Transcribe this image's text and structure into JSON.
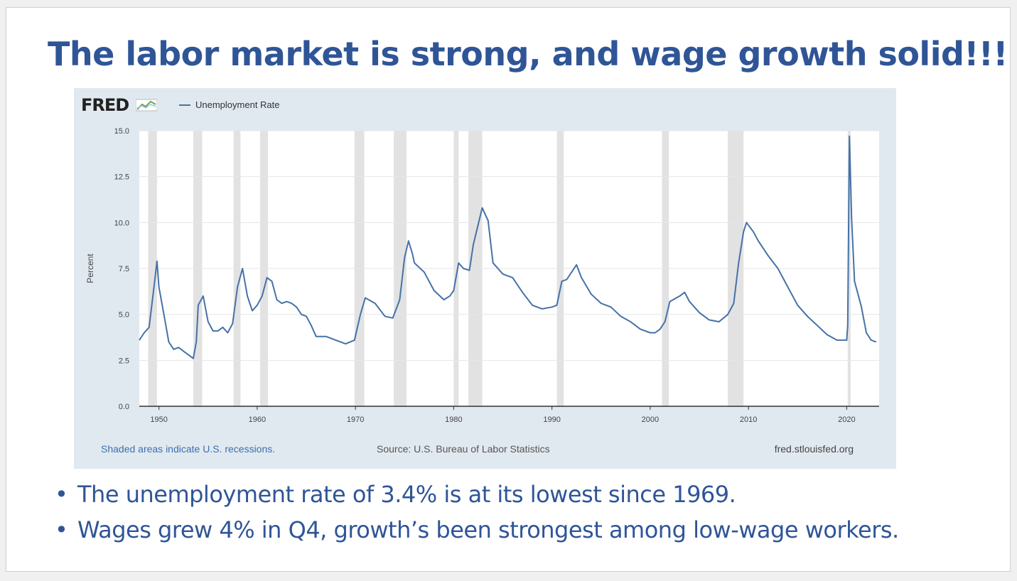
{
  "slide": {
    "title": "The labor market is strong, and wage growth solid!!!",
    "bullets": [
      "The unemployment rate of 3.4% is at its lowest since 1969.",
      "Wages grew 4% in Q4, growth’s been strongest among low-wage workers."
    ]
  },
  "colors": {
    "title": "#2f5597",
    "series": "#4572a7",
    "recession": "#e2e2e2",
    "panel": "#e1e9f0"
  },
  "chart_data": {
    "type": "line",
    "logo": "FRED",
    "legend_entry": "Unemployment Rate",
    "ylabel": "Percent",
    "ylim": [
      0,
      15
    ],
    "xlim": [
      1948,
      2023.3
    ],
    "y_ticks": [
      "0.0",
      "2.5",
      "5.0",
      "7.5",
      "10.0",
      "12.5",
      "15.0"
    ],
    "x_ticks": [
      1950,
      1960,
      1970,
      1980,
      1990,
      2000,
      2010,
      2020
    ],
    "grid": true,
    "notes": {
      "shaded": "Shaded areas indicate U.S. recessions.",
      "source": "Source: U.S. Bureau of Labor Statistics",
      "site": "fred.stlouisfed.org"
    },
    "recessions": [
      [
        1948.9,
        1949.8
      ],
      [
        1953.5,
        1954.4
      ],
      [
        1957.6,
        1958.3
      ],
      [
        1960.3,
        1961.1
      ],
      [
        1969.9,
        1970.9
      ],
      [
        1973.9,
        1975.2
      ],
      [
        1980.0,
        1980.5
      ],
      [
        1981.5,
        1982.9
      ],
      [
        1990.5,
        1991.2
      ],
      [
        2001.2,
        2001.9
      ],
      [
        2007.9,
        2009.5
      ],
      [
        2020.1,
        2020.4
      ]
    ],
    "series": [
      {
        "name": "Unemployment Rate",
        "x": [
          1948.0,
          1948.5,
          1949.0,
          1949.5,
          1949.8,
          1950.0,
          1950.5,
          1951.0,
          1951.5,
          1952.0,
          1952.5,
          1953.0,
          1953.5,
          1953.8,
          1954.0,
          1954.5,
          1955.0,
          1955.5,
          1956.0,
          1956.5,
          1957.0,
          1957.5,
          1958.0,
          1958.5,
          1959.0,
          1959.5,
          1960.0,
          1960.5,
          1961.0,
          1961.5,
          1962.0,
          1962.5,
          1963.0,
          1963.5,
          1964.0,
          1964.5,
          1965.0,
          1965.5,
          1966.0,
          1967.0,
          1968.0,
          1969.0,
          1969.9,
          1970.5,
          1971.0,
          1972.0,
          1973.0,
          1973.8,
          1974.5,
          1975.0,
          1975.4,
          1975.8,
          1976.0,
          1977.0,
          1978.0,
          1979.0,
          1979.6,
          1980.0,
          1980.5,
          1981.0,
          1981.6,
          1982.0,
          1982.9,
          1983.5,
          1984.0,
          1985.0,
          1986.0,
          1987.0,
          1988.0,
          1989.0,
          1990.0,
          1990.5,
          1991.0,
          1991.5,
          1992.5,
          1993.0,
          1994.0,
          1995.0,
          1996.0,
          1997.0,
          1998.0,
          1999.0,
          2000.0,
          2000.5,
          2001.0,
          2001.5,
          2002.0,
          2003.0,
          2003.5,
          2004.0,
          2005.0,
          2006.0,
          2007.0,
          2007.9,
          2008.5,
          2009.0,
          2009.5,
          2009.8,
          2010.5,
          2011.0,
          2012.0,
          2013.0,
          2014.0,
          2015.0,
          2016.0,
          2017.0,
          2018.0,
          2019.0,
          2020.0,
          2020.1,
          2020.28,
          2020.5,
          2020.8,
          2021.0,
          2021.5,
          2022.0,
          2022.5,
          2023.0
        ],
        "values": [
          3.6,
          4.0,
          4.3,
          6.5,
          7.9,
          6.5,
          5.0,
          3.5,
          3.1,
          3.2,
          3.0,
          2.8,
          2.6,
          3.5,
          5.5,
          6.0,
          4.6,
          4.1,
          4.1,
          4.3,
          4.0,
          4.5,
          6.5,
          7.5,
          6.0,
          5.2,
          5.5,
          6.0,
          7.0,
          6.8,
          5.8,
          5.6,
          5.7,
          5.6,
          5.4,
          5.0,
          4.9,
          4.4,
          3.8,
          3.8,
          3.6,
          3.4,
          3.6,
          5.0,
          5.9,
          5.6,
          4.9,
          4.8,
          5.8,
          8.1,
          9.0,
          8.3,
          7.8,
          7.3,
          6.3,
          5.8,
          6.0,
          6.3,
          7.8,
          7.5,
          7.4,
          8.8,
          10.8,
          10.1,
          7.8,
          7.2,
          7.0,
          6.2,
          5.5,
          5.3,
          5.4,
          5.5,
          6.8,
          6.9,
          7.7,
          7.0,
          6.1,
          5.6,
          5.4,
          4.9,
          4.6,
          4.2,
          4.0,
          4.0,
          4.2,
          4.6,
          5.7,
          6.0,
          6.2,
          5.7,
          5.1,
          4.7,
          4.6,
          5.0,
          5.6,
          7.8,
          9.5,
          10.0,
          9.5,
          9.0,
          8.2,
          7.5,
          6.5,
          5.5,
          4.9,
          4.4,
          3.9,
          3.6,
          3.6,
          4.4,
          14.7,
          10.2,
          6.8,
          6.4,
          5.4,
          4.0,
          3.6,
          3.5
        ]
      }
    ]
  }
}
